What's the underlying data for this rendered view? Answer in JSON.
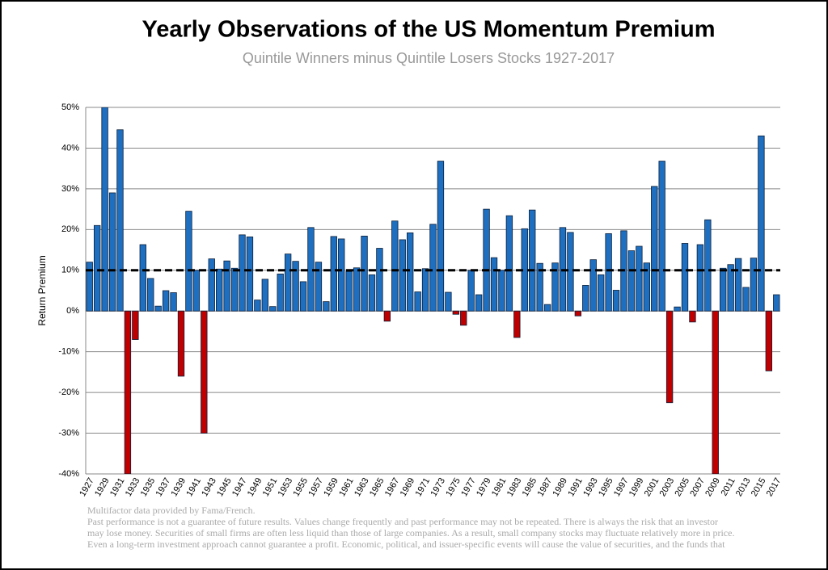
{
  "chart_data": {
    "type": "bar",
    "title": "Yearly Observations of the US Momentum Premium",
    "subtitle": "Quintile Winners minus Quintile Losers Stocks 1927-2017",
    "y_label": "Return Premium",
    "categories": [
      "1927",
      null,
      "1929",
      null,
      "1931",
      null,
      "1933",
      null,
      "1935",
      null,
      "1937",
      null,
      "1939",
      null,
      "1941",
      null,
      "1943",
      null,
      "1945",
      null,
      "1947",
      null,
      "1949",
      null,
      "1951",
      null,
      "1953",
      null,
      "1955",
      null,
      "1957",
      null,
      "1959",
      null,
      "1961",
      null,
      "1963",
      null,
      "1965",
      null,
      "1967",
      null,
      "1969",
      null,
      "1971",
      null,
      "1973",
      null,
      "1975",
      null,
      "1977",
      null,
      "1979",
      null,
      "1981",
      null,
      "1983",
      null,
      "1985",
      null,
      "1987",
      null,
      "1989",
      null,
      "1991",
      null,
      "1993",
      null,
      "1995",
      null,
      "1997",
      null,
      "1999",
      null,
      "2001",
      null,
      "2003",
      null,
      "2005",
      null,
      "2007",
      null,
      "2009",
      null,
      "2011",
      null,
      "2013",
      null,
      "2015",
      null,
      "2017"
    ],
    "values": [
      12,
      21,
      50,
      29,
      44.5,
      -40,
      -7,
      16.3,
      8,
      1.2,
      5,
      4.5,
      -16,
      24.5,
      10,
      -30,
      12.8,
      10.3,
      12.3,
      10.5,
      18.7,
      18.2,
      2.7,
      7.8,
      1.1,
      9.1,
      14,
      12.2,
      7.2,
      20.5,
      12,
      2.3,
      18.3,
      17.7,
      9.7,
      10.6,
      18.4,
      8.9,
      15.4,
      -2.5,
      22.1,
      17.5,
      19.2,
      4.7,
      10.4,
      21.3,
      36.8,
      4.6,
      -0.8,
      -3.5,
      10,
      4,
      25,
      13.1,
      10,
      23.4,
      -6.5,
      20.2,
      24.8,
      11.7,
      1.6,
      11.8,
      20.5,
      19.3,
      -1.2,
      6.3,
      12.6,
      8.9,
      19,
      5.1,
      19.7,
      14.8,
      15.9,
      11.8,
      30.6,
      36.8,
      -22.5,
      1,
      16.6,
      -2.7,
      16.3,
      22.4,
      -40,
      10.5,
      11.4,
      12.9,
      5.8,
      13,
      43,
      -14.7,
      4
    ],
    "colors": {
      "positive": "#1f6fc0",
      "negative": "#c00000"
    },
    "reference_line": 10,
    "ylim": [
      -40,
      50
    ],
    "yticks": [
      {
        "value": -40,
        "label": "-40%"
      },
      {
        "value": -30,
        "label": "-30%"
      },
      {
        "value": -20,
        "label": "-20%"
      },
      {
        "value": -10,
        "label": "-10%"
      },
      {
        "value": 0,
        "label": "0%"
      },
      {
        "value": 10,
        "label": "10%"
      },
      {
        "value": 20,
        "label": "20%"
      },
      {
        "value": 30,
        "label": "30%"
      },
      {
        "value": 40,
        "label": "40%"
      },
      {
        "value": 50,
        "label": "50%"
      }
    ],
    "grid": true,
    "footnotes": [
      "Multifactor data provided by Fama/French.",
      "Past performance is not a guarantee of future results. Values change frequently and past performance may not be repeated. There is always the risk that an investor",
      "may lose money. Securities of small firms are often less liquid than those of large companies. As a result, small company stocks may fluctuate relatively more in price.",
      "Even a long-term investment approach cannot guarantee a profit. Economic, political, and issuer-specific events will cause the value of securities, and the funds that"
    ]
  }
}
